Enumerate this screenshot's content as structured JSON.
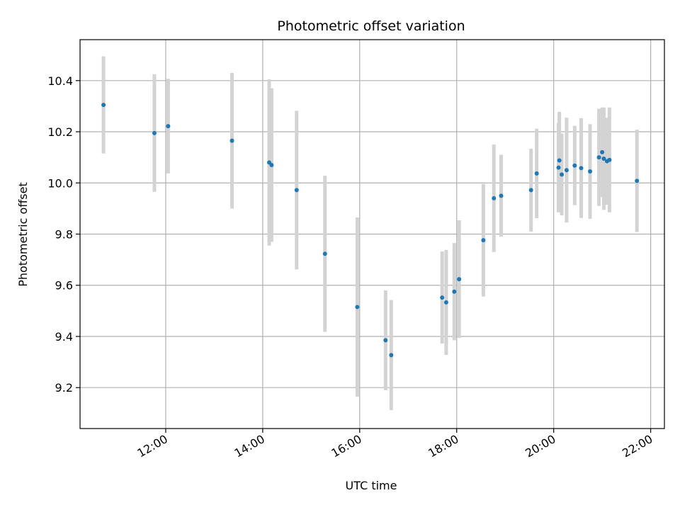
{
  "chart_data": {
    "type": "scatter",
    "title": "Photometric offset variation",
    "xlabel": "UTC time",
    "ylabel": "Photometric offset",
    "x_ticks": [
      "12:00",
      "14:00",
      "16:00",
      "18:00",
      "20:00",
      "22:00"
    ],
    "y_ticks": [
      "9.2",
      "9.4",
      "9.6",
      "9.8",
      "10.0",
      "10.2",
      "10.4"
    ],
    "xlim": [
      "10:14",
      "22:17"
    ],
    "ylim": [
      9.04,
      10.56
    ],
    "grid": true,
    "x_tick_rotation_deg": 30,
    "point_color": "#1f77b4",
    "errorbar_color": "#d3d3d3",
    "series": [
      {
        "points": [
          {
            "x": "10:43",
            "y": 10.305,
            "err": 0.19
          },
          {
            "x": "11:46",
            "y": 10.195,
            "err": 0.23
          },
          {
            "x": "12:03",
            "y": 10.222,
            "err": 0.185
          },
          {
            "x": "13:22",
            "y": 10.165,
            "err": 0.265
          },
          {
            "x": "14:08",
            "y": 10.08,
            "err": 0.325
          },
          {
            "x": "14:11",
            "y": 10.07,
            "err": 0.3
          },
          {
            "x": "14:42",
            "y": 9.972,
            "err": 0.31
          },
          {
            "x": "15:17",
            "y": 9.723,
            "err": 0.305
          },
          {
            "x": "15:57",
            "y": 9.515,
            "err": 0.35
          },
          {
            "x": "16:32",
            "y": 9.385,
            "err": 0.195
          },
          {
            "x": "16:39",
            "y": 9.327,
            "err": 0.215
          },
          {
            "x": "17:42",
            "y": 9.552,
            "err": 0.18
          },
          {
            "x": "17:47",
            "y": 9.533,
            "err": 0.205
          },
          {
            "x": "17:57",
            "y": 9.575,
            "err": 0.19
          },
          {
            "x": "18:03",
            "y": 9.624,
            "err": 0.23
          },
          {
            "x": "18:33",
            "y": 9.776,
            "err": 0.22
          },
          {
            "x": "18:46",
            "y": 9.94,
            "err": 0.21
          },
          {
            "x": "18:55",
            "y": 9.95,
            "err": 0.16
          },
          {
            "x": "19:32",
            "y": 9.972,
            "err": 0.162
          },
          {
            "x": "19:39",
            "y": 10.037,
            "err": 0.175
          },
          {
            "x": "20:06",
            "y": 10.06,
            "err": 0.175
          },
          {
            "x": "20:07",
            "y": 10.088,
            "err": 0.19
          },
          {
            "x": "20:10",
            "y": 10.033,
            "err": 0.16
          },
          {
            "x": "20:16",
            "y": 10.05,
            "err": 0.205
          },
          {
            "x": "20:26",
            "y": 10.068,
            "err": 0.155
          },
          {
            "x": "20:34",
            "y": 10.058,
            "err": 0.195
          },
          {
            "x": "20:45",
            "y": 10.045,
            "err": 0.185
          },
          {
            "x": "20:56",
            "y": 10.1,
            "err": 0.19
          },
          {
            "x": "21:00",
            "y": 10.12,
            "err": 0.175
          },
          {
            "x": "21:02",
            "y": 10.095,
            "err": 0.2
          },
          {
            "x": "21:06",
            "y": 10.085,
            "err": 0.17
          },
          {
            "x": "21:09",
            "y": 10.09,
            "err": 0.205
          },
          {
            "x": "21:43",
            "y": 10.008,
            "err": 0.2
          }
        ]
      }
    ]
  }
}
